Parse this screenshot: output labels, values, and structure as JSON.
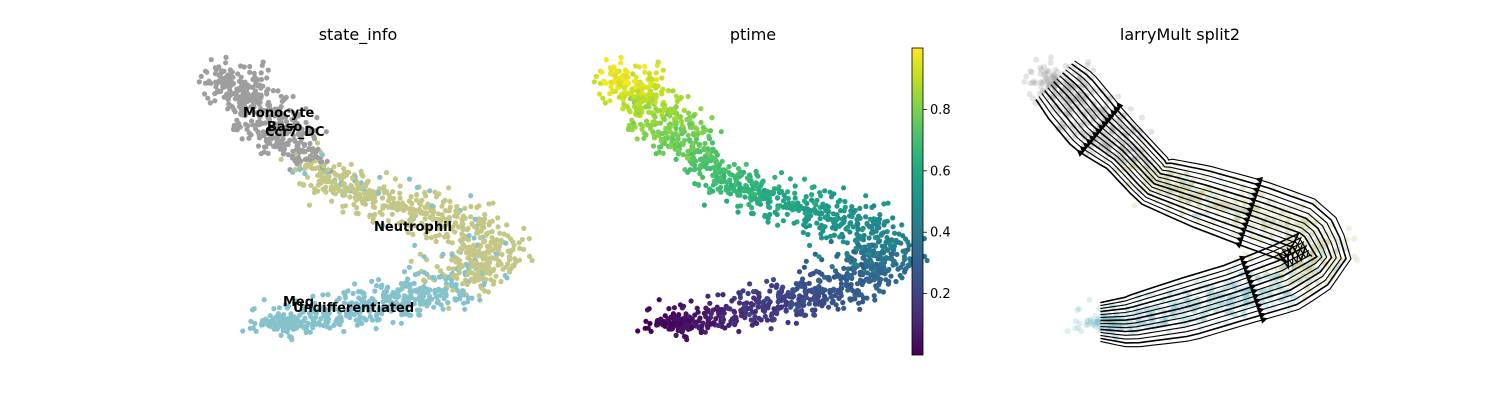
{
  "chart_data": [
    {
      "type": "scatter",
      "title": "state_info",
      "color_by": "categorical",
      "categories": [
        {
          "name": "Monocyte",
          "color": "#9e9e9e"
        },
        {
          "name": "Baso",
          "color": "#9e9e9e"
        },
        {
          "name": "Ccr7_DC",
          "color": "#9e9e9e"
        },
        {
          "name": "Neutrophil",
          "color": "#c5c787"
        },
        {
          "name": "Meg",
          "color": "#85c2cb"
        },
        {
          "name": "Undifferentiated",
          "color": "#85c2cb"
        }
      ],
      "axes_visible": false,
      "grid": false
    },
    {
      "type": "scatter",
      "title": "ptime",
      "color_by": "continuous",
      "colormap": "viridis",
      "colorbar": {
        "range": [
          0.0,
          1.0
        ],
        "ticks": [
          0.2,
          0.4,
          0.6,
          0.8
        ],
        "tick_labels": [
          "0.2",
          "0.4",
          "0.6",
          "0.8"
        ]
      },
      "axes_visible": false,
      "grid": false
    },
    {
      "type": "streamplot",
      "title": "larryMult split2",
      "background": "embedding colored by state_info (faded)",
      "stream_color": "#000000",
      "axes_visible": false,
      "grid": false
    }
  ]
}
